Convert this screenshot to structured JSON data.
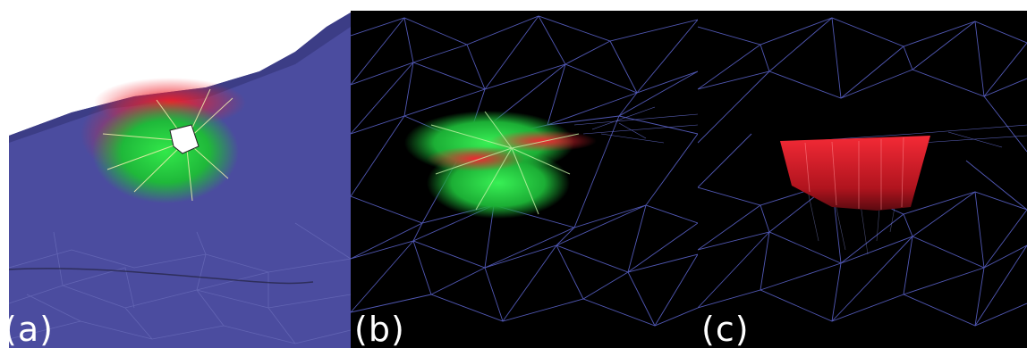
{
  "panels": [
    {
      "label": "(a)"
    },
    {
      "label": "(b)"
    },
    {
      "label": "(c)"
    }
  ],
  "colors": {
    "background": "#ffffff",
    "mesh_surface": "#4a4a9e",
    "wireframe": "#5a62c8",
    "viewport_bg": "#000000",
    "highlight_red": "#e8202a",
    "highlight_green": "#24d13a",
    "hole": "#ffffff"
  }
}
